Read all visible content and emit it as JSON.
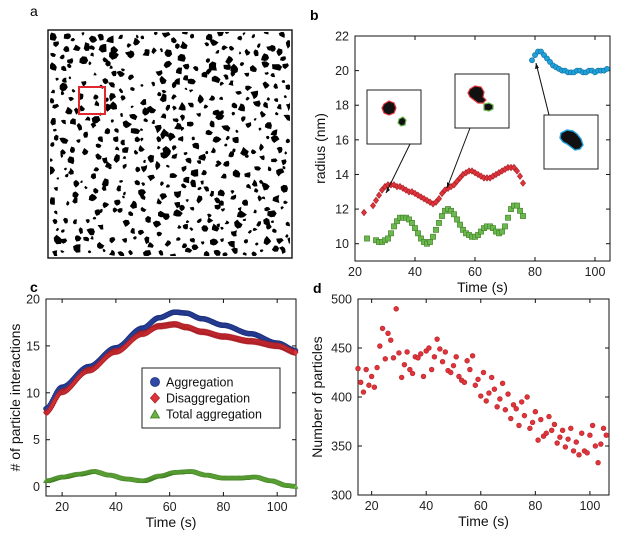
{
  "panels": {
    "a": {
      "label": "a"
    },
    "b": {
      "label": "b"
    },
    "c": {
      "label": "c"
    },
    "d": {
      "label": "d"
    }
  },
  "colors": {
    "blue": "#2f49a8",
    "red": "#e0333a",
    "green": "#6ab23f",
    "cyan": "#1fa2dc",
    "lightgreen": "#6cb850",
    "box": "#e1262d"
  },
  "chart_data": [
    {
      "id": "b",
      "type": "scatter",
      "xlabel": "Time (s)",
      "ylabel": "radius (nm)",
      "xlim": [
        20,
        105
      ],
      "ylim": [
        9,
        22
      ],
      "xticks": [
        20,
        40,
        60,
        80,
        100
      ],
      "yticks": [
        10,
        12,
        14,
        16,
        18,
        20,
        22
      ],
      "series": [
        {
          "name": "red",
          "marker": "diamond",
          "x": [
            23,
            26,
            27,
            28,
            29,
            30,
            31,
            32,
            33,
            34,
            35,
            36,
            37,
            38,
            39,
            40,
            41,
            42,
            43,
            44,
            45,
            46,
            47,
            48,
            49,
            50,
            51,
            52,
            53,
            54,
            55,
            56,
            57,
            58,
            59,
            60,
            61,
            62,
            63,
            64,
            65,
            66,
            67,
            68,
            69,
            70,
            71,
            72,
            73,
            74,
            75,
            76
          ],
          "y": [
            11.8,
            12.2,
            12.5,
            12.8,
            13.1,
            13.3,
            13.4,
            13.4,
            13.4,
            13.3,
            13.3,
            13.2,
            13.1,
            13.0,
            13.0,
            12.9,
            12.8,
            12.7,
            12.6,
            12.5,
            12.4,
            12.3,
            12.4,
            12.6,
            12.9,
            13.1,
            13.2,
            13.3,
            13.4,
            13.6,
            13.8,
            14.0,
            14.1,
            14.2,
            14.2,
            14.1,
            14.0,
            13.9,
            13.8,
            13.8,
            13.8,
            13.9,
            14.0,
            14.1,
            14.2,
            14.3,
            14.4,
            14.4,
            14.4,
            14.2,
            13.9,
            13.5
          ]
        },
        {
          "name": "green",
          "marker": "square",
          "x": [
            24,
            27,
            28,
            29,
            30,
            31,
            32,
            33,
            34,
            35,
            36,
            37,
            38,
            39,
            40,
            41,
            42,
            43,
            44,
            45,
            46,
            47,
            48,
            49,
            50,
            51,
            52,
            53,
            54,
            55,
            56,
            57,
            58,
            59,
            60,
            61,
            62,
            63,
            64,
            65,
            66,
            67,
            68,
            69,
            70,
            71,
            72,
            73,
            74,
            75,
            76
          ],
          "y": [
            10.3,
            10.2,
            10.1,
            10.1,
            10.2,
            10.3,
            10.6,
            11.0,
            11.3,
            11.5,
            11.5,
            11.5,
            11.4,
            11.2,
            10.9,
            10.6,
            10.3,
            10.1,
            10.0,
            10.1,
            10.4,
            10.8,
            11.2,
            11.6,
            11.9,
            12.0,
            11.9,
            11.7,
            11.4,
            11.1,
            10.8,
            10.6,
            10.5,
            10.4,
            10.4,
            10.5,
            10.7,
            10.9,
            11.0,
            11.0,
            10.9,
            10.7,
            10.6,
            10.7,
            11.0,
            11.5,
            12.0,
            12.2,
            12.2,
            11.9,
            11.6
          ]
        },
        {
          "name": "cyan",
          "marker": "circle",
          "x": [
            79,
            80,
            81,
            82,
            83,
            84,
            85,
            86,
            87,
            88,
            89,
            90,
            91,
            92,
            93,
            94,
            95,
            96,
            97,
            98,
            99,
            100,
            101,
            102,
            103,
            104
          ],
          "y": [
            20.6,
            20.9,
            21.1,
            21.1,
            20.9,
            20.7,
            20.5,
            20.3,
            20.2,
            20.1,
            20.0,
            20.0,
            19.9,
            19.9,
            19.9,
            20.0,
            20.0,
            19.9,
            19.9,
            20.0,
            20.0,
            19.9,
            20.0,
            20.0,
            20.0,
            20.1
          ]
        }
      ]
    },
    {
      "id": "c",
      "type": "scatter",
      "xlabel": "Time (s)",
      "ylabel": "# of particle interactions",
      "xlim": [
        14,
        107
      ],
      "ylim": [
        -1,
        20
      ],
      "xticks": [
        20,
        40,
        60,
        80,
        100
      ],
      "yticks": [
        0,
        5,
        10,
        15,
        20
      ],
      "legend_position": "center-right",
      "series": [
        {
          "name": "Aggregation",
          "marker": "circle",
          "key": [
            [
              14,
              8.3
            ],
            [
              20,
              10.6
            ],
            [
              30,
              12.8
            ],
            [
              40,
              14.8
            ],
            [
              50,
              16.9
            ],
            [
              56,
              18.0
            ],
            [
              62,
              18.6
            ],
            [
              66,
              18.5
            ],
            [
              72,
              17.9
            ],
            [
              80,
              17.2
            ],
            [
              90,
              16.3
            ],
            [
              100,
              15.3
            ],
            [
              107,
              14.5
            ]
          ]
        },
        {
          "name": "Disaggregation",
          "marker": "diamond",
          "key": [
            [
              14,
              7.9
            ],
            [
              20,
              10.1
            ],
            [
              30,
              12.4
            ],
            [
              40,
              14.4
            ],
            [
              50,
              16.3
            ],
            [
              56,
              17.1
            ],
            [
              62,
              17.3
            ],
            [
              66,
              17.0
            ],
            [
              72,
              16.5
            ],
            [
              80,
              16.0
            ],
            [
              90,
              15.5
            ],
            [
              100,
              15.0
            ],
            [
              107,
              14.3
            ]
          ]
        },
        {
          "name": "Total aggregation",
          "marker": "triangle",
          "key": [
            [
              14,
              0.6
            ],
            [
              20,
              1.0
            ],
            [
              26,
              1.3
            ],
            [
              32,
              1.6
            ],
            [
              38,
              1.2
            ],
            [
              44,
              0.8
            ],
            [
              50,
              0.6
            ],
            [
              56,
              1.1
            ],
            [
              62,
              1.5
            ],
            [
              68,
              1.6
            ],
            [
              74,
              1.2
            ],
            [
              80,
              0.9
            ],
            [
              86,
              0.9
            ],
            [
              92,
              1.0
            ],
            [
              98,
              0.6
            ],
            [
              104,
              0.1
            ],
            [
              107,
              0.0
            ]
          ]
        }
      ]
    },
    {
      "id": "d",
      "type": "scatter",
      "xlabel": "Time (s)",
      "ylabel": "Number of particles",
      "xlim": [
        15,
        107
      ],
      "ylim": [
        300,
        500
      ],
      "xticks": [
        20,
        40,
        60,
        80,
        100
      ],
      "yticks": [
        300,
        350,
        400,
        450,
        500
      ],
      "series": [
        {
          "name": "particles",
          "marker": "circle",
          "x": [
            15,
            16,
            17,
            18,
            19,
            20,
            21,
            22,
            23,
            24,
            25,
            26,
            27,
            28,
            29,
            30,
            31,
            32,
            33,
            34,
            35,
            36,
            37,
            38,
            39,
            40,
            41,
            42,
            43,
            44,
            45,
            46,
            47,
            48,
            49,
            50,
            51,
            52,
            53,
            54,
            55,
            56,
            57,
            58,
            59,
            60,
            61,
            62,
            63,
            64,
            65,
            66,
            67,
            68,
            69,
            70,
            71,
            72,
            73,
            74,
            75,
            76,
            77,
            78,
            79,
            80,
            81,
            82,
            83,
            84,
            85,
            86,
            87,
            88,
            89,
            90,
            91,
            92,
            93,
            94,
            95,
            96,
            97,
            98,
            99,
            100,
            101,
            102,
            103,
            104,
            105,
            106
          ],
          "y": [
            429,
            415,
            405,
            428,
            412,
            421,
            410,
            430,
            452,
            470,
            439,
            465,
            458,
            440,
            490,
            445,
            420,
            433,
            446,
            428,
            424,
            441,
            440,
            444,
            421,
            447,
            450,
            428,
            441,
            459,
            449,
            436,
            446,
            427,
            425,
            432,
            441,
            421,
            417,
            415,
            437,
            428,
            442,
            412,
            418,
            401,
            425,
            396,
            404,
            420,
            408,
            390,
            398,
            414,
            387,
            403,
            378,
            392,
            388,
            371,
            395,
            381,
            400,
            368,
            374,
            385,
            356,
            377,
            360,
            363,
            380,
            366,
            372,
            353,
            359,
            366,
            349,
            357,
            368,
            345,
            354,
            341,
            363,
            345,
            343,
            361,
            371,
            350,
            333,
            352,
            368,
            361
          ]
        }
      ]
    }
  ]
}
